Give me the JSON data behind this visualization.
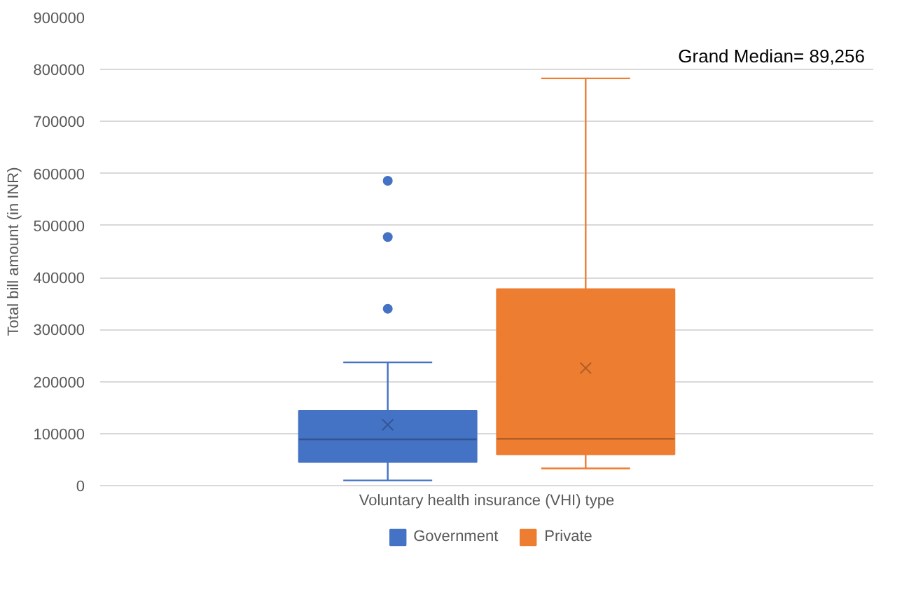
{
  "chart_data": {
    "type": "box",
    "categories": [
      null
    ],
    "xlabel": "Voluntary health insurance (VHI) type",
    "ylabel": "Total bill amount (in INR)",
    "ylim": [
      0,
      900000
    ],
    "yticks": [
      0,
      100000,
      200000,
      300000,
      400000,
      500000,
      600000,
      700000,
      800000,
      900000
    ],
    "grid": "y",
    "legend": "bottom",
    "tick_labels": "y",
    "annotations": [
      "Grand Median= 89,256"
    ],
    "series": [
      {
        "name": "Government",
        "color": "#4472c4",
        "boxes": [
          {
            "low": 10000,
            "q1": 45000,
            "median": 89000,
            "q3": 144000,
            "high": 237000,
            "mean": 117000,
            "outliers": [
              340000,
              478000,
              586000
            ]
          }
        ]
      },
      {
        "name": "Private",
        "color": "#ed7d31",
        "boxes": [
          {
            "low": 33000,
            "q1": 60000,
            "median": 90000,
            "q3": 378000,
            "high": 783000,
            "mean": 226000
          }
        ]
      }
    ]
  }
}
